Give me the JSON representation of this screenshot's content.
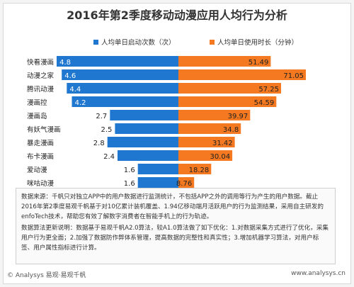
{
  "title": "2016年第2季度移动动漫应用人均行为分析",
  "legend": {
    "left": "人均单日启动次数（次）",
    "right": "人均单日使用时长（分钟）"
  },
  "colors": {
    "blue": "#1f77d0",
    "orange": "#f47920"
  },
  "chart_data": {
    "type": "bar",
    "categories": [
      "快看漫画",
      "动漫之家",
      "腾讯动漫",
      "漫画控",
      "漫画岛",
      "有妖气漫画",
      "暴走漫画",
      "布卡漫画",
      "爱动漫",
      "咪咕动漫"
    ],
    "series": [
      {
        "name": "人均单日启动次数（次）",
        "values": [
          4.8,
          4.6,
          4.4,
          4.2,
          2.7,
          2.5,
          2.8,
          2.4,
          1.6,
          1.6
        ]
      },
      {
        "name": "人均单日使用时长（分钟）",
        "values": [
          51.49,
          71.05,
          57.25,
          54.59,
          39.97,
          34.8,
          31.42,
          30.04,
          18.28,
          8.76
        ]
      }
    ],
    "value_labels": {
      "left": [
        "4.8",
        "4.6",
        "4.4",
        "4.2",
        "2.7",
        "2.5",
        "2.8",
        "2.4",
        "1.6",
        "1.6"
      ],
      "right": [
        "51.49",
        "71.05",
        "57.25",
        "54.59",
        "39.97",
        "34.8",
        "31.42",
        "30.04",
        "18.28",
        "8.76"
      ]
    },
    "legend_position": "top"
  },
  "notes": {
    "source": "数据来源：千帆只对独立APP中的用户数据进行监测统计，不包括APP之外的调用等行为产生的用户数据。截止2016年第2季度易观千帆基于对10亿累计装机覆盖、1.94亿移动端月活跃用户的行为监测结果，采用自主研发的enfoTech技术，帮助您有效了解数字消费者在智能手机上的行为轨迹。",
    "algorithm": "数据算法更新说明：数据基于易观千帆A2.0算法，较A1.0算法做了如下优化：1.对数据采集方式进行了优化，采集用户行为更全面；2.加强了数据防作弊体系管理，提高数据的完整性和真实性；3.增加机器学习算法，对用户标签、用户属性指标进行计算。"
  },
  "footer": {
    "left": "© Analysys 易观·易观千帆",
    "right": "www.analysys.cn"
  }
}
